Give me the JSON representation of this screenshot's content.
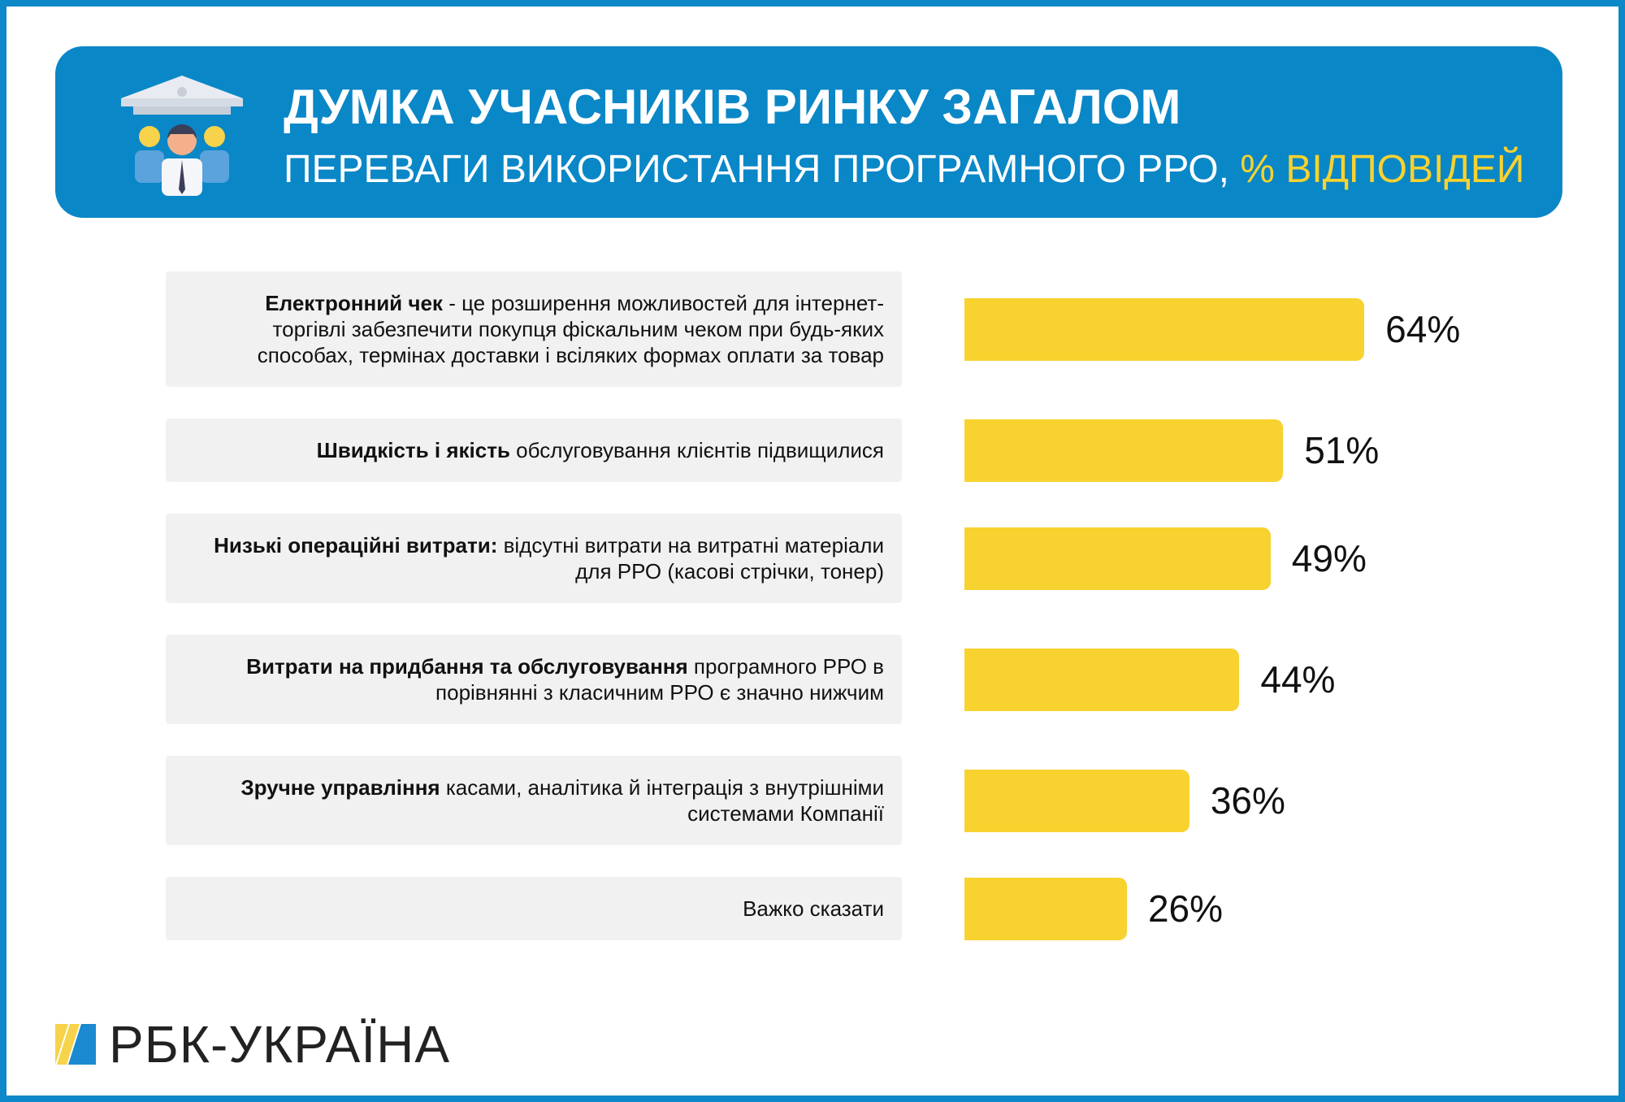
{
  "chart_data": {
    "type": "hbar",
    "title": "ДУМКА УЧАСНИКІВ РИНКУ ЗАГАЛОМ",
    "subtitle": "ПЕРЕВАГИ ВИКОРИСТАННЯ ПРОГРАМНОГО РРО,",
    "subtitle_highlight": "% ВІДПОВІДЕЙ",
    "categories": [
      {
        "strong": "Електронний чек",
        "text": "- це розширення можливостей для інтернет-торгівлі забезпечити покупця фіскальним чеком при будь-яких способах, термінах доставки і всіляких формах оплати за товар"
      },
      {
        "strong": "Швидкість і якість",
        "text": "обслуговування клієнтів підвищилися"
      },
      {
        "strong": "Низькі операційні витрати:",
        "text": "відсутні витрати на витратні матеріали для РРО (касові стрічки, тонер)"
      },
      {
        "strong": "Витрати на придбання та обслуговування",
        "text": "програмного РРО в порівнянні з класичним РРО є значно нижчим"
      },
      {
        "strong": "Зручне управління",
        "text": "касами, аналітика й інтеграція з внутрішніми системами Компанії"
      },
      {
        "text": "Важко сказати"
      }
    ],
    "values": [
      64,
      51,
      49,
      44,
      36,
      26
    ],
    "value_labels": [
      "64%",
      "51%",
      "49%",
      "44%",
      "36%",
      "26%"
    ],
    "color": "#f8d22f"
  },
  "logo": "РБК-УКРАЇНА"
}
